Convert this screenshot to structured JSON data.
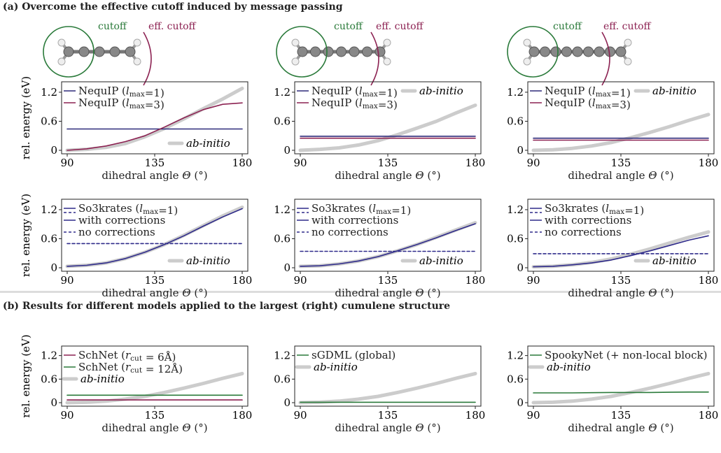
{
  "figure": {
    "section_a_title": "(a) Overcome the effective cutoff induced by message passing",
    "section_b_title": "(b) Results for different models applied to the largest (right) cumulene structure",
    "cutoff_label": "cutoff",
    "eff_cutoff_label": "eff. cutoff",
    "colors": {
      "nequip1": "#2e2a7a",
      "nequip3": "#8c2252",
      "so3": "#2e2a8a",
      "schnet6": "#8c2252",
      "green": "#2a7a3a",
      "abinitio": "#cccccc",
      "cutoff": "#2a7a3a",
      "effcutoff": "#8c2252"
    }
  },
  "chart_data": [
    {
      "type": "line",
      "panel": "a-top-1",
      "xlabel": "dihedral angle Θ (°)",
      "ylabel": "rel. energy (eV)",
      "xlim": [
        90,
        180
      ],
      "ylim": [
        0,
        1.3
      ],
      "xticks": [
        90,
        135,
        180
      ],
      "yticks": [
        0,
        0.6,
        1.2
      ],
      "x": [
        90,
        100,
        110,
        120,
        130,
        140,
        150,
        160,
        170,
        180
      ],
      "series": [
        {
          "name": "NequIP (l_max=1)",
          "values": [
            0.44,
            0.44,
            0.44,
            0.44,
            0.44,
            0.44,
            0.44,
            0.44,
            0.44,
            0.44
          ]
        },
        {
          "name": "NequIP (l_max=3)",
          "values": [
            0.0,
            0.03,
            0.09,
            0.18,
            0.3,
            0.48,
            0.67,
            0.84,
            0.95,
            0.98
          ]
        },
        {
          "name": "ab-initio",
          "values": [
            0.0,
            0.02,
            0.06,
            0.14,
            0.28,
            0.45,
            0.65,
            0.86,
            1.06,
            1.28
          ]
        }
      ],
      "legend_position": "top-left; ab-initio bottom-right"
    },
    {
      "type": "line",
      "panel": "a-top-2",
      "xlabel": "dihedral angle Θ (°)",
      "ylabel": "",
      "xlim": [
        90,
        180
      ],
      "ylim": [
        0,
        1.3
      ],
      "xticks": [
        90,
        135,
        180
      ],
      "yticks": [
        0,
        0.6,
        1.2
      ],
      "x": [
        90,
        100,
        110,
        120,
        130,
        140,
        150,
        160,
        170,
        180
      ],
      "series": [
        {
          "name": "NequIP (l_max=1)",
          "values": [
            0.29,
            0.29,
            0.29,
            0.29,
            0.29,
            0.29,
            0.29,
            0.29,
            0.29,
            0.29
          ]
        },
        {
          "name": "NequIP (l_max=3)",
          "values": [
            0.25,
            0.25,
            0.25,
            0.25,
            0.25,
            0.25,
            0.25,
            0.25,
            0.25,
            0.25
          ]
        },
        {
          "name": "ab-initio",
          "values": [
            0.0,
            0.02,
            0.05,
            0.11,
            0.2,
            0.32,
            0.46,
            0.6,
            0.77,
            0.93
          ]
        }
      ],
      "legend_position": "top-left; ab-initio top-right"
    },
    {
      "type": "line",
      "panel": "a-top-3",
      "xlabel": "dihedral angle Θ (°)",
      "ylabel": "",
      "xlim": [
        90,
        180
      ],
      "ylim": [
        0,
        1.3
      ],
      "xticks": [
        90,
        135,
        180
      ],
      "yticks": [
        0,
        0.6,
        1.2
      ],
      "x": [
        90,
        100,
        110,
        120,
        130,
        140,
        150,
        160,
        170,
        180
      ],
      "series": [
        {
          "name": "NequIP (l_max=1)",
          "values": [
            0.25,
            0.25,
            0.25,
            0.25,
            0.25,
            0.25,
            0.25,
            0.25,
            0.25,
            0.25
          ]
        },
        {
          "name": "NequIP (l_max=3)",
          "values": [
            0.21,
            0.21,
            0.21,
            0.21,
            0.21,
            0.21,
            0.21,
            0.21,
            0.21,
            0.21
          ]
        },
        {
          "name": "ab-initio",
          "values": [
            0.0,
            0.01,
            0.04,
            0.09,
            0.16,
            0.26,
            0.37,
            0.49,
            0.62,
            0.74
          ]
        }
      ],
      "legend_position": "top-left; ab-initio top-right"
    },
    {
      "type": "line",
      "panel": "a-bot-1",
      "xlabel": "dihedral angle Θ (°)",
      "ylabel": "rel. energy (eV)",
      "xlim": [
        90,
        180
      ],
      "ylim": [
        0,
        1.3
      ],
      "xticks": [
        90,
        135,
        180
      ],
      "yticks": [
        0,
        0.6,
        1.2
      ],
      "x": [
        90,
        100,
        110,
        120,
        130,
        140,
        150,
        160,
        170,
        180
      ],
      "series": [
        {
          "name": "with corrections",
          "values": [
            0.03,
            0.05,
            0.1,
            0.19,
            0.32,
            0.48,
            0.66,
            0.86,
            1.05,
            1.22
          ]
        },
        {
          "name": "no corrections",
          "values": [
            0.5,
            0.5,
            0.5,
            0.5,
            0.5,
            0.5,
            0.5,
            0.5,
            0.5,
            0.5
          ]
        },
        {
          "name": "ab-initio",
          "values": [
            0.03,
            0.05,
            0.1,
            0.19,
            0.32,
            0.48,
            0.67,
            0.87,
            1.07,
            1.25
          ]
        }
      ],
      "legend_title": "So3krates (l_max=1)",
      "legend_position": "top-left; ab-initio bottom-right"
    },
    {
      "type": "line",
      "panel": "a-bot-2",
      "xlabel": "dihedral angle Θ (°)",
      "ylabel": "",
      "xlim": [
        90,
        180
      ],
      "ylim": [
        0,
        1.3
      ],
      "xticks": [
        90,
        135,
        180
      ],
      "yticks": [
        0,
        0.6,
        1.2
      ],
      "x": [
        90,
        100,
        110,
        120,
        130,
        140,
        150,
        160,
        170,
        180
      ],
      "series": [
        {
          "name": "with corrections",
          "values": [
            0.03,
            0.04,
            0.08,
            0.14,
            0.23,
            0.35,
            0.48,
            0.62,
            0.77,
            0.91
          ]
        },
        {
          "name": "no corrections",
          "values": [
            0.34,
            0.34,
            0.34,
            0.34,
            0.34,
            0.34,
            0.34,
            0.34,
            0.34,
            0.34
          ]
        },
        {
          "name": "ab-initio",
          "values": [
            0.03,
            0.04,
            0.08,
            0.14,
            0.23,
            0.35,
            0.48,
            0.63,
            0.78,
            0.93
          ]
        }
      ],
      "legend_title": "So3krates (l_max=1)",
      "legend_position": "top-left; ab-initio bottom-right"
    },
    {
      "type": "line",
      "panel": "a-bot-3",
      "xlabel": "dihedral angle Θ (°)",
      "ylabel": "",
      "xlim": [
        90,
        180
      ],
      "ylim": [
        0,
        1.3
      ],
      "xticks": [
        90,
        135,
        180
      ],
      "yticks": [
        0,
        0.6,
        1.2
      ],
      "x": [
        90,
        100,
        110,
        120,
        130,
        140,
        150,
        160,
        170,
        180
      ],
      "series": [
        {
          "name": "with corrections",
          "values": [
            0.02,
            0.03,
            0.06,
            0.1,
            0.16,
            0.25,
            0.35,
            0.46,
            0.57,
            0.66
          ]
        },
        {
          "name": "no corrections",
          "values": [
            0.29,
            0.29,
            0.29,
            0.29,
            0.29,
            0.29,
            0.29,
            0.29,
            0.29,
            0.29
          ]
        },
        {
          "name": "ab-initio",
          "values": [
            0.02,
            0.03,
            0.06,
            0.11,
            0.18,
            0.28,
            0.39,
            0.51,
            0.63,
            0.74
          ]
        }
      ],
      "legend_title": "So3krates (l_max=1)",
      "legend_position": "top-left; ab-initio bottom-right"
    },
    {
      "type": "line",
      "panel": "b-1",
      "xlabel": "dihedral angle Θ (°)",
      "ylabel": "rel. energy (eV)",
      "xlim": [
        90,
        180
      ],
      "ylim": [
        0,
        1.3
      ],
      "xticks": [
        90,
        135,
        180
      ],
      "yticks": [
        0,
        0.6,
        1.2
      ],
      "x": [
        90,
        100,
        110,
        120,
        130,
        140,
        150,
        160,
        170,
        180
      ],
      "series": [
        {
          "name": "SchNet (r_cut = 6Å)",
          "values": [
            0.07,
            0.07,
            0.07,
            0.07,
            0.07,
            0.07,
            0.07,
            0.07,
            0.07,
            0.07
          ]
        },
        {
          "name": "SchNet (r_cut = 12Å)",
          "values": [
            0.19,
            0.19,
            0.19,
            0.19,
            0.19,
            0.19,
            0.19,
            0.19,
            0.19,
            0.19
          ]
        },
        {
          "name": "ab-initio",
          "values": [
            0.0,
            0.01,
            0.04,
            0.09,
            0.16,
            0.26,
            0.37,
            0.49,
            0.62,
            0.74
          ]
        }
      ],
      "legend_position": "top-left"
    },
    {
      "type": "line",
      "panel": "b-2",
      "xlabel": "dihedral angle Θ (°)",
      "ylabel": "",
      "xlim": [
        90,
        180
      ],
      "ylim": [
        0,
        1.3
      ],
      "xticks": [
        90,
        135,
        180
      ],
      "yticks": [
        0,
        0.6,
        1.2
      ],
      "x": [
        90,
        100,
        110,
        120,
        130,
        140,
        150,
        160,
        170,
        180
      ],
      "series": [
        {
          "name": "sGDML (global)",
          "values": [
            0.01,
            0.01,
            0.01,
            0.01,
            0.01,
            0.01,
            0.01,
            0.01,
            0.01,
            0.01
          ]
        },
        {
          "name": "ab-initio",
          "values": [
            0.0,
            0.01,
            0.04,
            0.09,
            0.16,
            0.26,
            0.37,
            0.49,
            0.62,
            0.74
          ]
        }
      ],
      "legend_position": "top-left"
    },
    {
      "type": "line",
      "panel": "b-3",
      "xlabel": "dihedral angle Θ (°)",
      "ylabel": "",
      "xlim": [
        90,
        180
      ],
      "ylim": [
        0,
        1.3
      ],
      "xticks": [
        90,
        135,
        180
      ],
      "yticks": [
        0,
        0.6,
        1.2
      ],
      "x": [
        90,
        100,
        110,
        120,
        130,
        140,
        150,
        160,
        170,
        180
      ],
      "series": [
        {
          "name": "SpookyNet (+ non-local block)",
          "values": [
            0.25,
            0.25,
            0.25,
            0.255,
            0.26,
            0.26,
            0.26,
            0.265,
            0.27,
            0.27
          ]
        },
        {
          "name": "ab-initio",
          "values": [
            0.0,
            0.01,
            0.04,
            0.09,
            0.16,
            0.26,
            0.37,
            0.49,
            0.62,
            0.74
          ]
        }
      ],
      "legend_position": "top-left"
    }
  ]
}
